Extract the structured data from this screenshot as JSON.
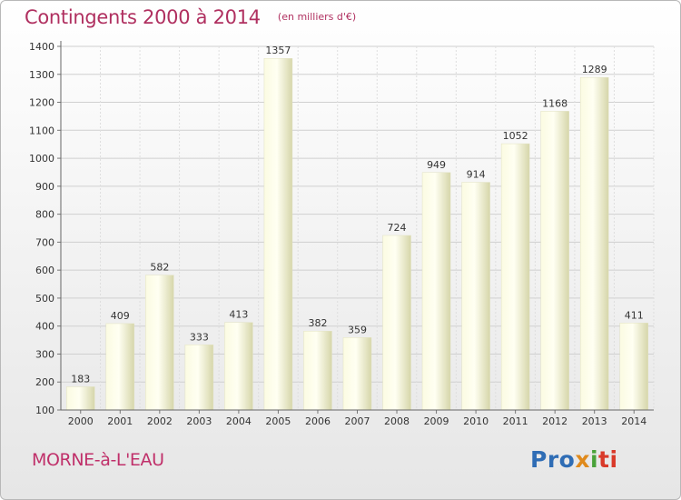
{
  "header": {
    "title": "Contingents 2000 à 2014",
    "subtitle": "(en milliers d'€)"
  },
  "footer": {
    "place": "MORNE-à-L'EAU",
    "logo_parts": [
      "Pro",
      "x",
      "i",
      "ti"
    ]
  },
  "colors": {
    "title": "#b03060",
    "bar_light": "#fdfde0",
    "bar_dark": "#d8d8ad",
    "grid": "#cccccc"
  },
  "chart_data": {
    "type": "bar",
    "title": "Contingents 2000 à 2014",
    "subtitle": "(en milliers d'€)",
    "xlabel": "",
    "ylabel": "",
    "categories": [
      "2000",
      "2001",
      "2002",
      "2003",
      "2004",
      "2005",
      "2006",
      "2007",
      "2008",
      "2009",
      "2010",
      "2011",
      "2012",
      "2013",
      "2014"
    ],
    "values": [
      183,
      409,
      582,
      333,
      413,
      1357,
      382,
      359,
      724,
      949,
      914,
      1052,
      1168,
      1289,
      411
    ],
    "ylim": [
      100,
      1400
    ],
    "yticks": [
      100,
      200,
      300,
      400,
      500,
      600,
      700,
      800,
      900,
      1000,
      1100,
      1200,
      1300,
      1400
    ],
    "grid": true,
    "data_labels": true
  }
}
